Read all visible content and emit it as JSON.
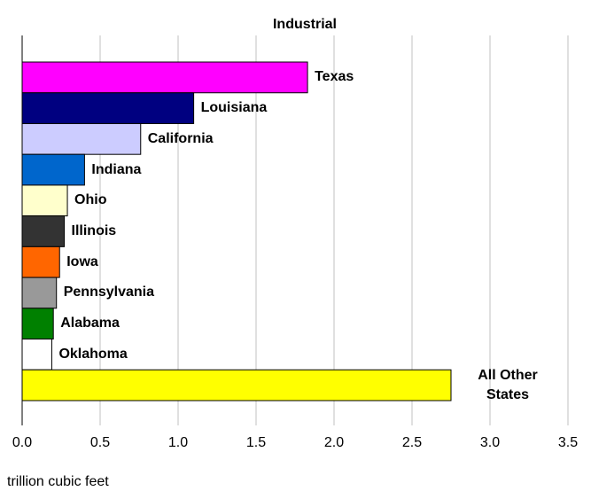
{
  "chart_data": {
    "type": "bar",
    "orientation": "horizontal",
    "title": "Industrial",
    "xlabel": "trillion cubic feet",
    "categories": [
      "Texas",
      "Louisiana",
      "California",
      "Indiana",
      "Ohio",
      "Illinois",
      "Iowa",
      "Pennsylvania",
      "Alabama",
      "Oklahoma",
      "All Other States"
    ],
    "values": [
      1.83,
      1.1,
      0.76,
      0.4,
      0.29,
      0.27,
      0.24,
      0.22,
      0.2,
      0.19,
      2.75
    ],
    "colors": [
      "#ff00ff",
      "#000080",
      "#ccccff",
      "#0066cc",
      "#ffffcc",
      "#333333",
      "#ff6600",
      "#999999",
      "#008000",
      "#ffffff",
      "#ffff00"
    ],
    "xlim": [
      0,
      3.5
    ],
    "xticks": [
      {
        "value": 0,
        "label": "0.0"
      },
      0.5,
      {
        "value": 1,
        "label": "1.0"
      },
      1.5,
      {
        "value": 2,
        "label": "2.0"
      },
      2.5,
      {
        "value": 3,
        "label": "3.0"
      },
      3.5
    ],
    "grid": true
  }
}
